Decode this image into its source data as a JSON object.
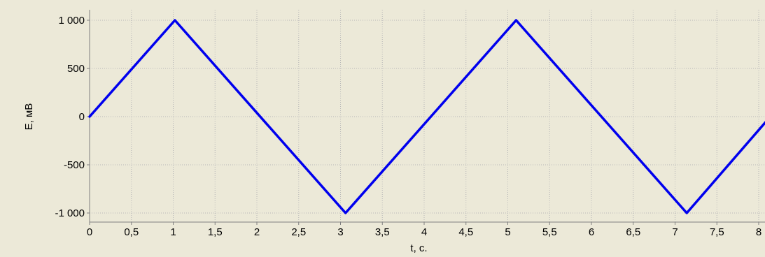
{
  "chart_data": {
    "type": "line",
    "xlabel": "t, c.",
    "ylabel": "E, мВ",
    "xlim": [
      0,
      8.1
    ],
    "ylim": [
      -1000,
      1000
    ],
    "grid": true,
    "x_ticks": [
      0,
      0.5,
      1,
      1.5,
      2,
      2.5,
      3,
      3.5,
      4,
      4.5,
      5,
      5.5,
      6,
      6.5,
      7,
      7.5,
      8
    ],
    "x_tick_labels": [
      "0",
      "0,5",
      "1",
      "1,5",
      "2",
      "2,5",
      "3",
      "3,5",
      "4",
      "4,5",
      "5",
      "5,5",
      "6",
      "6,5",
      "7",
      "7,5",
      "8"
    ],
    "y_ticks": [
      1000,
      500,
      0,
      -500,
      -1000
    ],
    "y_tick_labels": [
      "1 000",
      "500",
      "0",
      "-500",
      "-1 000"
    ],
    "series": [
      {
        "color": "#0000ee",
        "x": [
          0,
          1.02,
          3.06,
          5.1,
          7.14,
          8.1
        ],
        "y": [
          0,
          1000,
          -1000,
          1000,
          -1000,
          -40
        ]
      }
    ]
  },
  "colors": {
    "background": "#ece9d8",
    "grid": "#b8b8b8",
    "line": "#0000ee",
    "axis": "#808080"
  }
}
